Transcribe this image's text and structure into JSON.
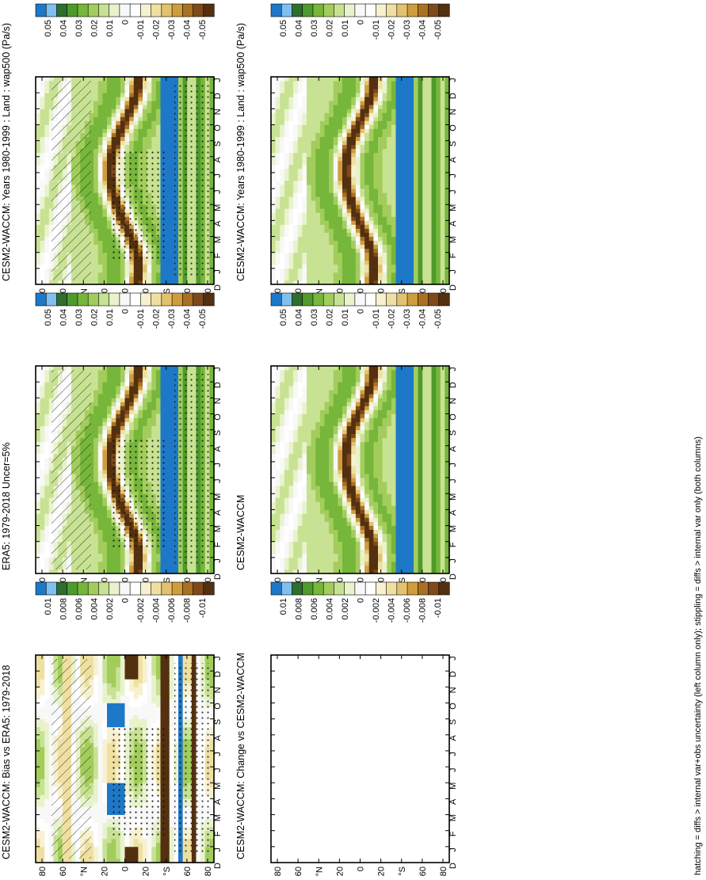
{
  "figure": {
    "footnote": "hatching = diffs > internal var+obs uncertainty (left column only); stippling = diffs > internal var only (both columns)",
    "month_labels": [
      "D",
      "J",
      "F",
      "M",
      "A",
      "M",
      "J",
      "J",
      "A",
      "S",
      "O",
      "N",
      "D",
      "J"
    ],
    "lat_labels": [
      "80",
      "60",
      "°N",
      "20",
      "0",
      "20",
      "°S",
      "60",
      "80"
    ]
  },
  "colorbars": {
    "mean_levels": [
      "0.05",
      "0.04",
      "0.03",
      "0.02",
      "0.01",
      "0",
      "-0.01",
      "-0.02",
      "-0.03",
      "-0.04",
      "-0.05"
    ],
    "diff_levels": [
      "0.01",
      "0.008",
      "0.006",
      "0.004",
      "0.002",
      "0",
      "-0.002",
      "-0.004",
      "-0.006",
      "-0.008",
      "-0.01"
    ],
    "colors": [
      "#1e78c8",
      "#7fc0ee",
      "#2e6e2e",
      "#4f9a2c",
      "#76b63a",
      "#a2cd5c",
      "#c8e293",
      "#e8f3cd",
      "#f8f8f8",
      "#ffffff",
      "#f7f1cf",
      "#efe0a2",
      "#e2c26e",
      "#cf9d3c",
      "#aa7124",
      "#7e4a1a",
      "#53300f"
    ]
  },
  "panels": [
    {
      "id": "p1",
      "title": "CESM2-WACCM: Years 1980-1999 : Land : wap500 (Pa/s)",
      "colorbar": "mean",
      "empty": false
    },
    {
      "id": "p2",
      "title": "ERA5: 1979-2018 Uncer=5%",
      "colorbar": "mean",
      "empty": false
    },
    {
      "id": "p3",
      "title": "CESM2-WACCM: Bias vs ERA5: 1979-2018",
      "colorbar": "diff",
      "empty": false
    },
    {
      "id": "p4",
      "title": "CESM2-WACCM: Years 1980-1999 : Land : wap500 (Pa/s)",
      "colorbar": "mean",
      "empty": false
    },
    {
      "id": "p5",
      "title": "CESM2-WACCM",
      "colorbar": "mean",
      "empty": false
    },
    {
      "id": "p6",
      "title": "CESM2-WACCM: Change vs CESM2-WACCM",
      "colorbar": "diff",
      "empty": true
    }
  ],
  "chart_data": [
    {
      "type": "heatmap",
      "title": "CESM2-WACCM: Years 1980-1999 : Land : wap500 (Pa/s)",
      "x": [
        "D",
        "J",
        "F",
        "M",
        "A",
        "M",
        "J",
        "J",
        "A",
        "S",
        "O",
        "N",
        "D",
        "J"
      ],
      "y_ticks": [
        "80",
        "60",
        "°N",
        "20",
        "0",
        "20",
        "°S",
        "60",
        "80"
      ],
      "levels": [
        0.05,
        0.04,
        0.03,
        0.02,
        0.01,
        0,
        -0.01,
        -0.02,
        -0.03,
        -0.04,
        -0.05
      ],
      "features": {
        "itcz_lat_by_month": [
          -12,
          -14,
          -12,
          -6,
          2,
          8,
          13,
          15,
          14,
          9,
          2,
          -6,
          -12,
          -14
        ],
        "ascent_band_value": -0.05,
        "subtropical_descent_value": 0.02,
        "southern_midlat_value": 0.05
      }
    },
    {
      "type": "heatmap",
      "title": "ERA5: 1979-2018 Uncer=5%",
      "x": [
        "D",
        "J",
        "F",
        "M",
        "A",
        "M",
        "J",
        "J",
        "A",
        "S",
        "O",
        "N",
        "D",
        "J"
      ],
      "y_ticks": [
        "80",
        "60",
        "°N",
        "20",
        "0",
        "20",
        "°S",
        "60",
        "80"
      ],
      "levels": [
        0.05,
        0.04,
        0.03,
        0.02,
        0.01,
        0,
        -0.01,
        -0.02,
        -0.03,
        -0.04,
        -0.05
      ],
      "features": {
        "itcz_lat_by_month": [
          -12,
          -14,
          -12,
          -6,
          2,
          8,
          13,
          15,
          14,
          9,
          2,
          -6,
          -12,
          -14
        ],
        "ascent_band_value": -0.05,
        "subtropical_descent_value": 0.02,
        "southern_midlat_value": 0.05
      }
    },
    {
      "type": "heatmap",
      "title": "CESM2-WACCM: Bias vs ERA5: 1979-2018",
      "x": [
        "D",
        "J",
        "F",
        "M",
        "A",
        "M",
        "J",
        "J",
        "A",
        "S",
        "O",
        "N",
        "D",
        "J"
      ],
      "y_ticks": [
        "80",
        "60",
        "°N",
        "20",
        "0",
        "20",
        "°S",
        "60",
        "80"
      ],
      "levels": [
        0.01,
        0.008,
        0.006,
        0.004,
        0.002,
        0,
        -0.002,
        -0.004,
        -0.006,
        -0.008,
        -0.01
      ],
      "features": {
        "positive_bias_regions": [
          "0-20°N Mar-Apr",
          "0-20°N Sep-Oct",
          "~55°S all year"
        ],
        "negative_bias_regions": [
          "0-20°S Dec-Jan",
          "~40°S all year",
          "~70°S all year"
        ]
      }
    },
    {
      "type": "heatmap",
      "title": "CESM2-WACCM: Years 1980-1999 : Land : wap500 (Pa/s)",
      "x": [
        "D",
        "J",
        "F",
        "M",
        "A",
        "M",
        "J",
        "J",
        "A",
        "S",
        "O",
        "N",
        "D",
        "J"
      ],
      "y_ticks": [
        "80",
        "60",
        "°N",
        "20",
        "0",
        "20",
        "°S",
        "60",
        "80"
      ],
      "levels": [
        0.05,
        0.04,
        0.03,
        0.02,
        0.01,
        0,
        -0.01,
        -0.02,
        -0.03,
        -0.04,
        -0.05
      ],
      "features": {
        "itcz_lat_by_month": [
          -12,
          -14,
          -12,
          -6,
          2,
          8,
          13,
          15,
          14,
          9,
          2,
          -6,
          -12,
          -14
        ],
        "ascent_band_value": -0.05,
        "subtropical_descent_value": 0.02,
        "southern_midlat_value": 0.05
      }
    },
    {
      "type": "heatmap",
      "title": "CESM2-WACCM",
      "x": [
        "D",
        "J",
        "F",
        "M",
        "A",
        "M",
        "J",
        "J",
        "A",
        "S",
        "O",
        "N",
        "D",
        "J"
      ],
      "y_ticks": [
        "80",
        "60",
        "°N",
        "20",
        "0",
        "20",
        "°S",
        "60",
        "80"
      ],
      "levels": [
        0.05,
        0.04,
        0.03,
        0.02,
        0.01,
        0,
        -0.01,
        -0.02,
        -0.03,
        -0.04,
        -0.05
      ],
      "features": {
        "itcz_lat_by_month": [
          -12,
          -14,
          -12,
          -6,
          2,
          8,
          13,
          15,
          14,
          9,
          2,
          -6,
          -12,
          -14
        ],
        "ascent_band_value": -0.05,
        "subtropical_descent_value": 0.02,
        "southern_midlat_value": 0.05
      }
    },
    {
      "type": "heatmap",
      "title": "CESM2-WACCM: Change vs CESM2-WACCM",
      "x": [
        "D",
        "J",
        "F",
        "M",
        "A",
        "M",
        "J",
        "J",
        "A",
        "S",
        "O",
        "N",
        "D",
        "J"
      ],
      "y_ticks": [
        "80",
        "60",
        "°N",
        "20",
        "0",
        "20",
        "°S",
        "60",
        "80"
      ],
      "levels": [
        0.01,
        0.008,
        0.006,
        0.004,
        0.002,
        0,
        -0.002,
        -0.004,
        -0.006,
        -0.008,
        -0.01
      ],
      "features": {
        "empty": true
      }
    }
  ]
}
